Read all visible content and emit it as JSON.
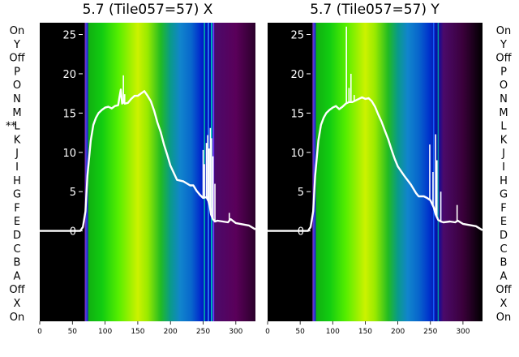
{
  "chart_data": [
    {
      "type": "heatmap",
      "title": "5.7 (Tile057=57) X",
      "row_labels": [
        "On",
        "Y",
        "Off",
        "P",
        "O",
        "N",
        "M",
        "L",
        "K",
        "J",
        "I",
        "H",
        "G",
        "F",
        "E",
        "D",
        "C",
        "B",
        "A",
        "Off",
        "X",
        "On"
      ],
      "row_label_annotations": [
        {
          "row": "L",
          "text": "**"
        }
      ],
      "xticks": [
        0,
        50,
        100,
        150,
        200,
        250,
        300
      ],
      "xlim": [
        0,
        330
      ],
      "overlay_yticks": [
        0,
        5,
        10,
        15,
        20,
        25
      ],
      "overlay_ylim": [
        -11.5,
        26.5
      ],
      "spectrum_stops": [
        {
          "x": 0,
          "color": "#000000"
        },
        {
          "x": 68,
          "color": "#000000"
        },
        {
          "x": 71,
          "color": "#7b2fd0"
        },
        {
          "x": 73,
          "color": "#1a1acc"
        },
        {
          "x": 75,
          "color": "#11b011"
        },
        {
          "x": 95,
          "color": "#11cc11"
        },
        {
          "x": 120,
          "color": "#55ee00"
        },
        {
          "x": 150,
          "color": "#ccf200"
        },
        {
          "x": 165,
          "color": "#99ea00"
        },
        {
          "x": 185,
          "color": "#22bb22"
        },
        {
          "x": 200,
          "color": "#0a9a8a"
        },
        {
          "x": 215,
          "color": "#1185cc"
        },
        {
          "x": 232,
          "color": "#0866cc"
        },
        {
          "x": 248,
          "color": "#0022cc"
        },
        {
          "x": 265,
          "color": "#0000aa"
        },
        {
          "x": 268,
          "color": "#4b0a6a"
        },
        {
          "x": 300,
          "color": "#5a005a"
        },
        {
          "x": 330,
          "color": "#2a002a"
        }
      ],
      "vertical_lines": [
        {
          "x": 70,
          "color": "#7a30c8"
        },
        {
          "x": 71.5,
          "color": "#3040e0"
        },
        {
          "x": 252,
          "color": "#00c8a0"
        },
        {
          "x": 258,
          "color": "#33aaff"
        },
        {
          "x": 263,
          "color": "#00ffbb"
        },
        {
          "x": 266,
          "color": "#8844ff"
        }
      ],
      "series": [
        {
          "name": "",
          "x": [
            0,
            40,
            62,
            66,
            70,
            73,
            78,
            82,
            86,
            90,
            95,
            100,
            105,
            110,
            115,
            120,
            122,
            124,
            126,
            128,
            130,
            135,
            140,
            145,
            150,
            155,
            160,
            165,
            170,
            175,
            180,
            185,
            190,
            195,
            200,
            210,
            220,
            230,
            235,
            240,
            245,
            250,
            255,
            258,
            260,
            262,
            265,
            268,
            272,
            280,
            288,
            292,
            300,
            320,
            330
          ],
          "y": [
            0,
            0,
            0,
            0.5,
            2.5,
            7,
            11.5,
            13.5,
            14.4,
            15,
            15.4,
            15.7,
            15.8,
            15.6,
            15.9,
            16,
            17,
            18,
            16.2,
            16.5,
            16.2,
            16.3,
            16.8,
            17.2,
            17.2,
            17.5,
            17.8,
            17.2,
            16.5,
            15.3,
            13.8,
            12.6,
            11,
            9.7,
            8.3,
            6.5,
            6.3,
            5.8,
            5.8,
            5.1,
            4.6,
            4.2,
            4.3,
            3.8,
            3.2,
            2.1,
            1.5,
            1.2,
            1.3,
            1.2,
            1.1,
            1.5,
            1.0,
            0.7,
            0.2
          ]
        }
      ],
      "spikes": [
        {
          "x": 123,
          "y": 17.2
        },
        {
          "x": 128,
          "y": 19.8
        },
        {
          "x": 130,
          "y": 17.4
        },
        {
          "x": 250,
          "y": 10.3
        },
        {
          "x": 252,
          "y": 8.5
        },
        {
          "x": 255,
          "y": 11.2
        },
        {
          "x": 257,
          "y": 12.2
        },
        {
          "x": 259,
          "y": 10.5
        },
        {
          "x": 261,
          "y": 13.1
        },
        {
          "x": 263,
          "y": 11.8
        },
        {
          "x": 265,
          "y": 9.5
        },
        {
          "x": 268,
          "y": 6
        },
        {
          "x": 290,
          "y": 2.3
        }
      ]
    },
    {
      "type": "heatmap",
      "title": "5.7 (Tile057=57) Y",
      "row_labels": [
        "On",
        "Y",
        "Off",
        "P",
        "O",
        "N",
        "M",
        "L",
        "K",
        "J",
        "I",
        "H",
        "G",
        "F",
        "E",
        "D",
        "C",
        "B",
        "A",
        "Off",
        "X",
        "On"
      ],
      "xticks": [
        0,
        50,
        100,
        150,
        200,
        250,
        300
      ],
      "xlim": [
        0,
        330
      ],
      "overlay_yticks": [
        0,
        5,
        10,
        15,
        20,
        25
      ],
      "overlay_ylim": [
        -11.5,
        26.5
      ],
      "spectrum_stops": [
        {
          "x": 0,
          "color": "#000000"
        },
        {
          "x": 68,
          "color": "#000000"
        },
        {
          "x": 71,
          "color": "#7b2fd0"
        },
        {
          "x": 73,
          "color": "#1a1acc"
        },
        {
          "x": 75,
          "color": "#11b011"
        },
        {
          "x": 95,
          "color": "#11cc11"
        },
        {
          "x": 120,
          "color": "#55ee00"
        },
        {
          "x": 150,
          "color": "#ccf200"
        },
        {
          "x": 165,
          "color": "#99ea00"
        },
        {
          "x": 185,
          "color": "#22bb22"
        },
        {
          "x": 200,
          "color": "#0a9a8a"
        },
        {
          "x": 215,
          "color": "#1185cc"
        },
        {
          "x": 232,
          "color": "#0866cc"
        },
        {
          "x": 248,
          "color": "#0033cc"
        },
        {
          "x": 262,
          "color": "#0a0aa0"
        },
        {
          "x": 270,
          "color": "#4b0a6a"
        },
        {
          "x": 300,
          "color": "#3a003a"
        },
        {
          "x": 330,
          "color": "#000000"
        }
      ],
      "vertical_lines": [
        {
          "x": 70,
          "color": "#7a30c8"
        },
        {
          "x": 71.5,
          "color": "#3040e0"
        },
        {
          "x": 255,
          "color": "#1a66ff"
        },
        {
          "x": 262,
          "color": "#00b0a0"
        }
      ],
      "series": [
        {
          "name": "",
          "x": [
            0,
            40,
            62,
            66,
            70,
            73,
            78,
            82,
            86,
            90,
            95,
            100,
            105,
            110,
            115,
            120,
            125,
            130,
            135,
            140,
            145,
            150,
            155,
            160,
            165,
            170,
            175,
            180,
            185,
            190,
            195,
            200,
            210,
            220,
            228,
            232,
            240,
            245,
            250,
            255,
            258,
            262,
            266,
            270,
            280,
            288,
            292,
            300,
            320,
            330
          ],
          "y": [
            0,
            0,
            0,
            0.5,
            2.5,
            7,
            11.5,
            13.5,
            14.4,
            15,
            15.4,
            15.7,
            15.9,
            15.5,
            15.8,
            16.2,
            16.4,
            16.4,
            16.6,
            16.8,
            17,
            16.8,
            16.9,
            16.5,
            15.8,
            14.8,
            13.9,
            12.8,
            11.7,
            10.4,
            9.2,
            8.2,
            7,
            5.9,
            4.8,
            4.4,
            4.4,
            4.2,
            3.9,
            3.0,
            2.1,
            1.4,
            1.2,
            1.1,
            1.2,
            1.1,
            1.3,
            0.9,
            0.6,
            0.1
          ]
        }
      ],
      "spikes": [
        {
          "x": 121,
          "y": 26
        },
        {
          "x": 125,
          "y": 18.2
        },
        {
          "x": 128,
          "y": 20
        },
        {
          "x": 133,
          "y": 17.3
        },
        {
          "x": 249,
          "y": 11
        },
        {
          "x": 254,
          "y": 7.5
        },
        {
          "x": 258,
          "y": 12.3
        },
        {
          "x": 260,
          "y": 9
        },
        {
          "x": 266,
          "y": 5
        },
        {
          "x": 291,
          "y": 3.3
        }
      ]
    }
  ]
}
